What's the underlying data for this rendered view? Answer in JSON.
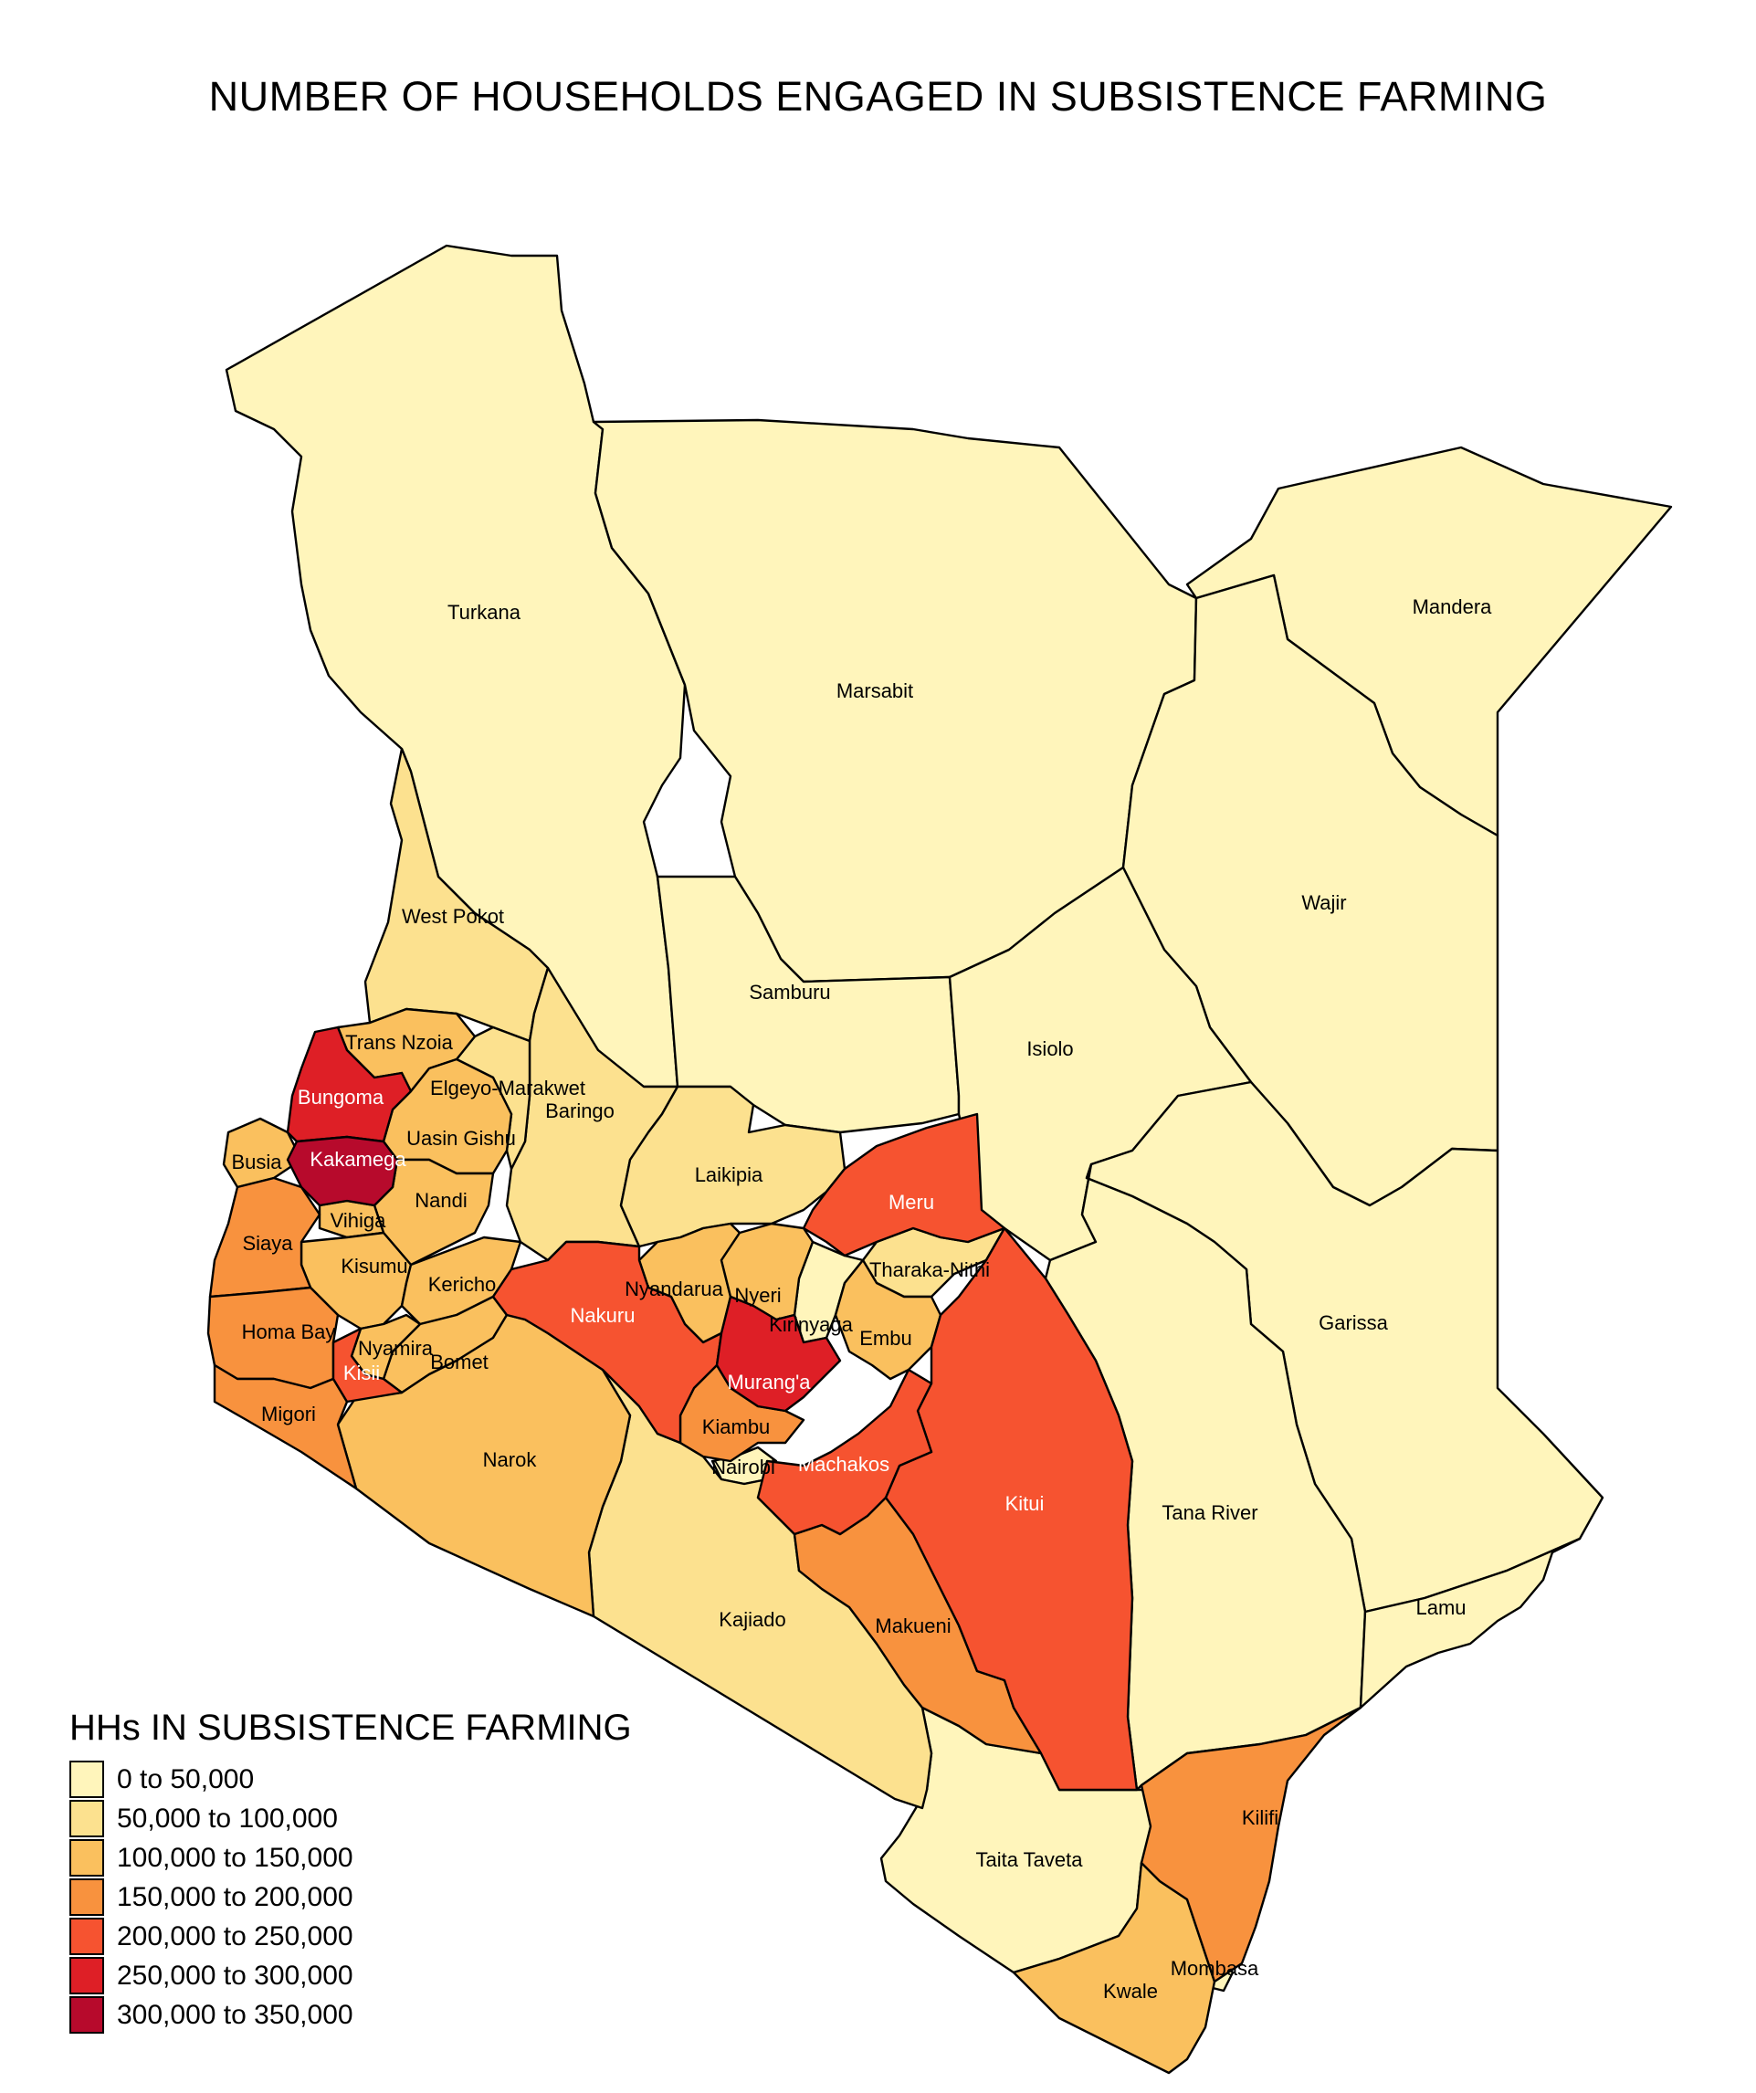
{
  "title": "NUMBER OF HOUSEHOLDS ENGAGED IN SUBSISTENCE FARMING",
  "colors": {
    "c1": "#FFF5BB",
    "c2": "#FCE18F",
    "c3": "#FAC05E",
    "c4": "#F8923E",
    "c5": "#F65330",
    "c6": "#DE1F26",
    "c7": "#B70A2C",
    "border": "#000000",
    "background": "#ffffff"
  },
  "legend": {
    "title": "HHs IN SUBSISTENCE FARMING",
    "items": [
      {
        "label": "0 to 50,000",
        "color": "#FFF5BB"
      },
      {
        "label": "50,000 to 100,000",
        "color": "#FCE18F"
      },
      {
        "label": "100,000 to 150,000",
        "color": "#FAC05E"
      },
      {
        "label": "150,000 to 200,000",
        "color": "#F8923E"
      },
      {
        "label": "200,000 to 250,000",
        "color": "#F65330"
      },
      {
        "label": "250,000 to 300,000",
        "color": "#DE1F26"
      },
      {
        "label": "300,000 to 350,000",
        "color": "#B70A2C"
      }
    ]
  },
  "counties": [
    {
      "name": "Turkana",
      "class": "0 to 50,000"
    },
    {
      "name": "Marsabit",
      "class": "0 to 50,000"
    },
    {
      "name": "Mandera",
      "class": "0 to 50,000"
    },
    {
      "name": "Wajir",
      "class": "0 to 50,000"
    },
    {
      "name": "Samburu",
      "class": "0 to 50,000"
    },
    {
      "name": "Isiolo",
      "class": "0 to 50,000"
    },
    {
      "name": "Garissa",
      "class": "0 to 50,000"
    },
    {
      "name": "Tana River",
      "class": "0 to 50,000"
    },
    {
      "name": "Lamu",
      "class": "0 to 50,000"
    },
    {
      "name": "Taita Taveta",
      "class": "0 to 50,000"
    },
    {
      "name": "Nairobi",
      "class": "0 to 50,000"
    },
    {
      "name": "Kirinyaga",
      "class": "0 to 50,000"
    },
    {
      "name": "Mombasa",
      "class": "0 to 50,000"
    },
    {
      "name": "West Pokot",
      "class": "50,000 to 100,000"
    },
    {
      "name": "Baringo",
      "class": "50,000 to 100,000"
    },
    {
      "name": "Laikipia",
      "class": "50,000 to 100,000"
    },
    {
      "name": "Kajiado",
      "class": "50,000 to 100,000"
    },
    {
      "name": "Tharaka-Nithi",
      "class": "50,000 to 100,000"
    },
    {
      "name": "Elgeyo-Marakwet",
      "class": "50,000 to 100,000"
    },
    {
      "name": "Trans Nzoia",
      "class": "100,000 to 150,000"
    },
    {
      "name": "Uasin Gishu",
      "class": "100,000 to 150,000"
    },
    {
      "name": "Nandi",
      "class": "100,000 to 150,000"
    },
    {
      "name": "Vihiga",
      "class": "100,000 to 150,000"
    },
    {
      "name": "Kisumu",
      "class": "100,000 to 150,000"
    },
    {
      "name": "Kericho",
      "class": "100,000 to 150,000"
    },
    {
      "name": "Bomet",
      "class": "100,000 to 150,000"
    },
    {
      "name": "Nyamira",
      "class": "100,000 to 150,000"
    },
    {
      "name": "Narok",
      "class": "100,000 to 150,000"
    },
    {
      "name": "Nyandarua",
      "class": "100,000 to 150,000"
    },
    {
      "name": "Nyeri",
      "class": "100,000 to 150,000"
    },
    {
      "name": "Embu",
      "class": "100,000 to 150,000"
    },
    {
      "name": "Kwale",
      "class": "100,000 to 150,000"
    },
    {
      "name": "Busia",
      "class": "100,000 to 150,000"
    },
    {
      "name": "Siaya",
      "class": "150,000 to 200,000"
    },
    {
      "name": "Homa Bay",
      "class": "150,000 to 200,000"
    },
    {
      "name": "Migori",
      "class": "150,000 to 200,000"
    },
    {
      "name": "Kiambu",
      "class": "150,000 to 200,000"
    },
    {
      "name": "Makueni",
      "class": "150,000 to 200,000"
    },
    {
      "name": "Kilifi",
      "class": "150,000 to 200,000"
    },
    {
      "name": "Nakuru",
      "class": "200,000 to 250,000"
    },
    {
      "name": "Meru",
      "class": "200,000 to 250,000"
    },
    {
      "name": "Kitui",
      "class": "200,000 to 250,000"
    },
    {
      "name": "Machakos",
      "class": "200,000 to 250,000"
    },
    {
      "name": "Kisii",
      "class": "200,000 to 250,000"
    },
    {
      "name": "Bungoma",
      "class": "250,000 to 300,000"
    },
    {
      "name": "Murang'a",
      "class": "250,000 to 300,000"
    },
    {
      "name": "Kakamega",
      "class": "300,000 to 350,000"
    }
  ]
}
